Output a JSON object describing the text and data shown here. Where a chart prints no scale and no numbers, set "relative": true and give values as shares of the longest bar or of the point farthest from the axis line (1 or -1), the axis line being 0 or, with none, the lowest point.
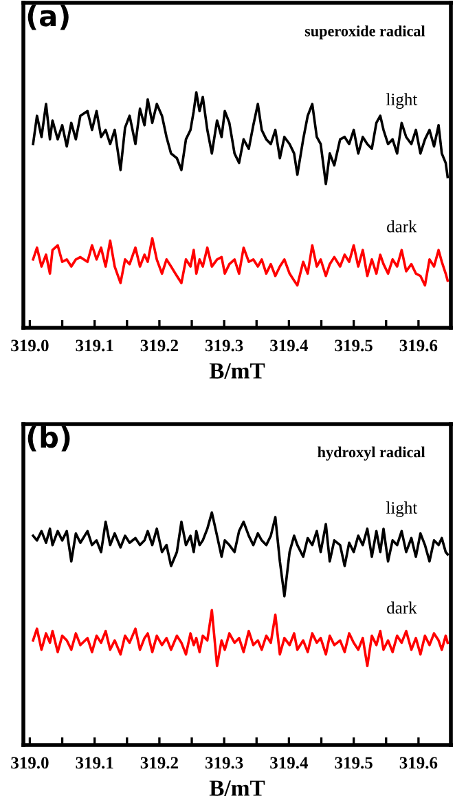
{
  "chart_data": [
    {
      "type": "line",
      "title": "(a)",
      "subtitle": "superoxide radical",
      "xlabel": "B/mT",
      "relative": true,
      "tick_labels": "x",
      "xlim": [
        318.99,
        319.65
      ],
      "xticks": [
        {
          "value": 319.0,
          "label": "319.0"
        },
        {
          "value": 319.05,
          "label": null
        },
        {
          "value": 319.1,
          "label": "319.1"
        },
        {
          "value": 319.15,
          "label": null
        },
        {
          "value": 319.2,
          "label": "319.2"
        },
        {
          "value": 319.25,
          "label": null
        },
        {
          "value": 319.3,
          "label": "319.3"
        },
        {
          "value": 319.35,
          "label": null
        },
        {
          "value": 319.4,
          "label": "319.4"
        },
        {
          "value": 319.45,
          "label": null
        },
        {
          "value": 319.5,
          "label": "319.5"
        },
        {
          "value": 319.55,
          "label": null
        },
        {
          "value": 319.6,
          "label": "319.6"
        }
      ],
      "x": [
        319.005,
        319.011,
        319.018,
        319.025,
        319.031,
        319.035,
        319.043,
        319.05,
        319.057,
        319.064,
        319.071,
        319.078,
        319.089,
        319.096,
        319.103,
        319.11,
        319.117,
        319.124,
        319.131,
        319.14,
        319.147,
        319.154,
        319.163,
        319.17,
        319.177,
        319.182,
        319.189,
        319.196,
        319.204,
        319.211,
        319.218,
        319.227,
        319.234,
        319.241,
        319.248,
        319.253,
        319.257,
        319.262,
        319.267,
        319.274,
        319.281,
        319.289,
        319.296,
        319.301,
        319.308,
        319.316,
        319.323,
        319.33,
        319.338,
        319.345,
        319.352,
        319.358,
        319.365,
        319.372,
        319.379,
        319.386,
        319.393,
        319.401,
        319.408,
        319.413,
        319.422,
        319.429,
        319.436,
        319.443,
        319.449,
        319.457,
        319.463,
        319.47,
        319.479,
        319.486,
        319.493,
        319.5,
        319.507,
        319.514,
        319.521,
        319.528,
        319.535,
        319.541,
        319.546,
        319.553,
        319.56,
        319.567,
        319.574,
        319.581,
        319.589,
        319.596,
        319.603,
        319.61,
        319.617,
        319.624,
        319.631,
        319.636,
        319.642,
        319.645
      ],
      "series": [
        {
          "name": "light",
          "color": "#000000",
          "values": [
            0.78,
            0.9,
            0.81,
            0.95,
            0.8,
            0.88,
            0.8,
            0.86,
            0.77,
            0.87,
            0.8,
            0.9,
            0.92,
            0.84,
            0.92,
            0.81,
            0.84,
            0.78,
            0.84,
            0.67,
            0.85,
            0.9,
            0.78,
            0.93,
            0.86,
            0.97,
            0.87,
            0.95,
            0.9,
            0.81,
            0.74,
            0.72,
            0.67,
            0.8,
            0.84,
            0.92,
            1.0,
            0.92,
            0.98,
            0.84,
            0.74,
            0.88,
            0.81,
            0.92,
            0.87,
            0.74,
            0.7,
            0.8,
            0.76,
            0.86,
            0.95,
            0.84,
            0.8,
            0.78,
            0.84,
            0.72,
            0.81,
            0.78,
            0.74,
            0.65,
            0.8,
            0.9,
            0.95,
            0.81,
            0.78,
            0.61,
            0.74,
            0.69,
            0.8,
            0.81,
            0.78,
            0.84,
            0.74,
            0.81,
            0.78,
            0.76,
            0.87,
            0.9,
            0.84,
            0.78,
            0.8,
            0.74,
            0.87,
            0.81,
            0.78,
            0.84,
            0.74,
            0.8,
            0.84,
            0.77,
            0.86,
            0.74,
            0.7,
            0.64
          ]
        },
        {
          "name": "dark",
          "color": "#ff0000",
          "values": [
            0.29,
            0.34,
            0.26,
            0.31,
            0.23,
            0.33,
            0.35,
            0.28,
            0.29,
            0.26,
            0.29,
            0.3,
            0.28,
            0.35,
            0.29,
            0.34,
            0.26,
            0.37,
            0.26,
            0.19,
            0.29,
            0.27,
            0.34,
            0.26,
            0.31,
            0.28,
            0.38,
            0.29,
            0.23,
            0.29,
            0.26,
            0.22,
            0.19,
            0.29,
            0.26,
            0.33,
            0.23,
            0.29,
            0.26,
            0.34,
            0.26,
            0.29,
            0.3,
            0.23,
            0.27,
            0.29,
            0.23,
            0.34,
            0.28,
            0.29,
            0.26,
            0.29,
            0.23,
            0.27,
            0.22,
            0.26,
            0.29,
            0.23,
            0.2,
            0.18,
            0.28,
            0.23,
            0.35,
            0.26,
            0.29,
            0.22,
            0.27,
            0.3,
            0.26,
            0.31,
            0.28,
            0.35,
            0.26,
            0.33,
            0.22,
            0.29,
            0.23,
            0.31,
            0.27,
            0.23,
            0.29,
            0.26,
            0.33,
            0.24,
            0.27,
            0.23,
            0.22,
            0.18,
            0.29,
            0.26,
            0.33,
            0.28,
            0.23,
            0.2
          ]
        }
      ]
    },
    {
      "type": "line",
      "title": "(b)",
      "subtitle": "hydroxyl radical",
      "xlabel": "B/mT",
      "relative": true,
      "tick_labels": "x",
      "xlim": [
        318.99,
        319.65
      ],
      "xticks": [
        {
          "value": 319.0,
          "label": "319.0"
        },
        {
          "value": 319.05,
          "label": null
        },
        {
          "value": 319.1,
          "label": "319.1"
        },
        {
          "value": 319.15,
          "label": null
        },
        {
          "value": 319.2,
          "label": "319.2"
        },
        {
          "value": 319.25,
          "label": null
        },
        {
          "value": 319.3,
          "label": "319.3"
        },
        {
          "value": 319.35,
          "label": null
        },
        {
          "value": 319.4,
          "label": "319.4"
        },
        {
          "value": 319.45,
          "label": null
        },
        {
          "value": 319.5,
          "label": "319.5"
        },
        {
          "value": 319.55,
          "label": null
        },
        {
          "value": 319.6,
          "label": "319.6"
        }
      ],
      "x": [
        319.005,
        319.011,
        319.018,
        319.025,
        319.031,
        319.035,
        319.043,
        319.05,
        319.057,
        319.064,
        319.071,
        319.078,
        319.089,
        319.096,
        319.103,
        319.11,
        319.117,
        319.124,
        319.131,
        319.14,
        319.147,
        319.154,
        319.163,
        319.17,
        319.177,
        319.182,
        319.189,
        319.196,
        319.204,
        319.211,
        319.218,
        319.227,
        319.234,
        319.241,
        319.248,
        319.253,
        319.257,
        319.262,
        319.267,
        319.274,
        319.281,
        319.289,
        319.296,
        319.301,
        319.308,
        319.316,
        319.323,
        319.33,
        319.338,
        319.345,
        319.352,
        319.358,
        319.365,
        319.372,
        319.379,
        319.386,
        319.393,
        319.401,
        319.408,
        319.413,
        319.422,
        319.429,
        319.436,
        319.443,
        319.449,
        319.457,
        319.463,
        319.47,
        319.479,
        319.486,
        319.493,
        319.5,
        319.507,
        319.514,
        319.521,
        319.528,
        319.535,
        319.541,
        319.546,
        319.553,
        319.56,
        319.567,
        319.574,
        319.581,
        319.589,
        319.596,
        319.603,
        319.61,
        319.617,
        319.624,
        319.631,
        319.636,
        319.642,
        319.645
      ],
      "series": [
        {
          "name": "light",
          "color": "#000000",
          "values": [
            0.9,
            0.88,
            0.92,
            0.87,
            0.93,
            0.86,
            0.92,
            0.88,
            0.92,
            0.79,
            0.91,
            0.87,
            0.92,
            0.86,
            0.88,
            0.83,
            0.96,
            0.86,
            0.91,
            0.85,
            0.9,
            0.87,
            0.89,
            0.86,
            0.88,
            0.92,
            0.86,
            0.93,
            0.83,
            0.86,
            0.77,
            0.83,
            0.96,
            0.86,
            0.9,
            0.83,
            0.92,
            0.86,
            0.88,
            0.93,
            1.0,
            0.9,
            0.81,
            0.88,
            0.86,
            0.83,
            0.92,
            0.96,
            0.9,
            0.86,
            0.91,
            0.88,
            0.86,
            0.9,
            0.98,
            0.79,
            0.64,
            0.83,
            0.9,
            0.86,
            0.81,
            0.89,
            0.86,
            0.92,
            0.83,
            0.95,
            0.79,
            0.88,
            0.86,
            0.77,
            0.87,
            0.83,
            0.9,
            0.86,
            0.93,
            0.81,
            0.92,
            0.83,
            0.93,
            0.79,
            0.88,
            0.86,
            0.92,
            0.83,
            0.89,
            0.81,
            0.91,
            0.86,
            0.79,
            0.88,
            0.86,
            0.89,
            0.83,
            0.82
          ]
        },
        {
          "name": "dark",
          "color": "#ff0000",
          "values": [
            0.45,
            0.5,
            0.41,
            0.48,
            0.44,
            0.49,
            0.4,
            0.47,
            0.45,
            0.41,
            0.48,
            0.43,
            0.46,
            0.4,
            0.47,
            0.44,
            0.49,
            0.41,
            0.45,
            0.39,
            0.47,
            0.44,
            0.5,
            0.41,
            0.46,
            0.48,
            0.4,
            0.47,
            0.43,
            0.46,
            0.41,
            0.47,
            0.44,
            0.39,
            0.48,
            0.43,
            0.46,
            0.4,
            0.47,
            0.45,
            0.58,
            0.34,
            0.45,
            0.41,
            0.48,
            0.44,
            0.46,
            0.4,
            0.49,
            0.43,
            0.45,
            0.41,
            0.47,
            0.44,
            0.56,
            0.39,
            0.46,
            0.43,
            0.48,
            0.41,
            0.45,
            0.4,
            0.48,
            0.44,
            0.46,
            0.39,
            0.47,
            0.43,
            0.45,
            0.4,
            0.48,
            0.44,
            0.41,
            0.46,
            0.34,
            0.47,
            0.43,
            0.49,
            0.41,
            0.45,
            0.4,
            0.47,
            0.44,
            0.49,
            0.41,
            0.46,
            0.39,
            0.47,
            0.43,
            0.48,
            0.45,
            0.41,
            0.47,
            0.44
          ]
        }
      ]
    }
  ]
}
